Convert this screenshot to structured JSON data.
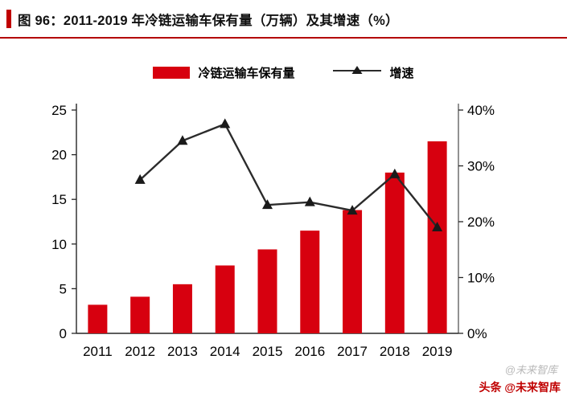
{
  "header": {
    "title": "图 96：2011-2019 年冷链运输车保有量（万辆）及其增速（%）"
  },
  "legend": {
    "bar_label": "冷链运输车保有量",
    "line_label": "增速"
  },
  "watermarks": {
    "gray": "@未来智库",
    "red": "头条 @未来智库"
  },
  "colors": {
    "accent_red": "#c00000",
    "bar_red": "#d7000f",
    "line_dark": "#2b2b2b"
  },
  "chart_data": {
    "type": "bar",
    "subtype": "bar+line combo, dual axis",
    "categories": [
      "2011",
      "2012",
      "2013",
      "2014",
      "2015",
      "2016",
      "2017",
      "2018",
      "2019"
    ],
    "series": [
      {
        "name": "冷链运输车保有量",
        "type": "bar",
        "axis": "left",
        "color": "#d7000f",
        "values": [
          3.2,
          4.1,
          5.5,
          7.6,
          9.4,
          11.5,
          13.8,
          18.0,
          21.5
        ]
      },
      {
        "name": "增速",
        "type": "line",
        "axis": "right",
        "color": "#2b2b2b",
        "marker": "triangle",
        "values": [
          null,
          27.5,
          34.5,
          37.5,
          23.0,
          23.5,
          22.0,
          28.5,
          19.0
        ]
      }
    ],
    "left_axis": {
      "min": 0,
      "max": 25,
      "step": 5,
      "labels": [
        "0",
        "5",
        "10",
        "15",
        "20",
        "25"
      ]
    },
    "right_axis": {
      "min": 0,
      "max": 40,
      "step": 10,
      "labels": [
        "0%",
        "10%",
        "20%",
        "30%",
        "40%"
      ]
    },
    "grid": false,
    "legend_position": "top-center",
    "title": "2011-2019 年冷链运输车保有量（万辆）及其增速（%）",
    "xlabel": "",
    "ylabel_left": "万辆",
    "ylabel_right": "%"
  }
}
